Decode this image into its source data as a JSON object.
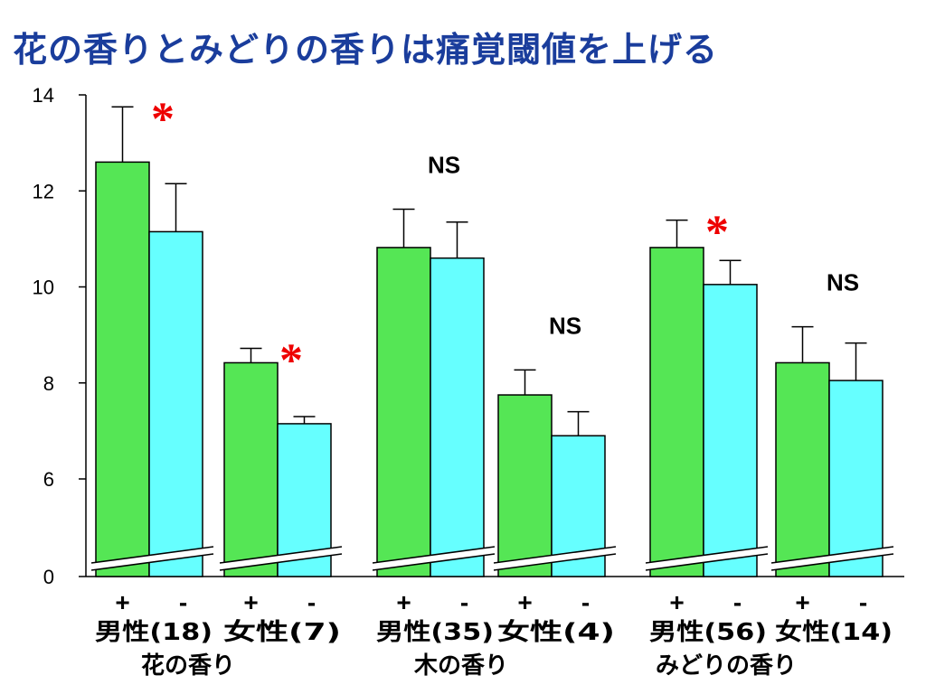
{
  "title": "花の香りとみどりの香りは痛覚閾値を上げる",
  "chart_data": {
    "type": "bar",
    "y_ticks": [
      0,
      6,
      8,
      10,
      12,
      14
    ],
    "ylim": [
      0,
      14
    ],
    "axis_break": true,
    "colors": {
      "plus": "#55e655",
      "minus": "#66ffff",
      "star": "#ee0000"
    },
    "groups": [
      {
        "label": "花の香り",
        "subgroups": [
          {
            "label": "男性(18)",
            "plus": {
              "value": 12.6,
              "err": 1.15
            },
            "minus": {
              "value": 11.15,
              "err": 1.0
            },
            "sig": "*"
          },
          {
            "label": "女性(7)",
            "plus": {
              "value": 8.42,
              "err": 0.3
            },
            "minus": {
              "value": 7.15,
              "err": 0.15
            },
            "sig": "*"
          }
        ]
      },
      {
        "label": "木の香り",
        "subgroups": [
          {
            "label": "男性(35)",
            "plus": {
              "value": 10.82,
              "err": 0.8
            },
            "minus": {
              "value": 10.6,
              "err": 0.75
            },
            "sig": "NS"
          },
          {
            "label": "女性(4)",
            "plus": {
              "value": 7.75,
              "err": 0.52
            },
            "minus": {
              "value": 6.9,
              "err": 0.5
            },
            "sig": "NS"
          }
        ]
      },
      {
        "label": "みどりの香り",
        "subgroups": [
          {
            "label": "男性(56)",
            "plus": {
              "value": 10.82,
              "err": 0.57
            },
            "minus": {
              "value": 10.05,
              "err": 0.5
            },
            "sig": "*"
          },
          {
            "label": "女性(14)",
            "plus": {
              "value": 8.42,
              "err": 0.75
            },
            "minus": {
              "value": 8.05,
              "err": 0.78
            },
            "sig": "NS"
          }
        ]
      }
    ],
    "bar_labels": {
      "plus": "+",
      "minus": "-"
    }
  }
}
